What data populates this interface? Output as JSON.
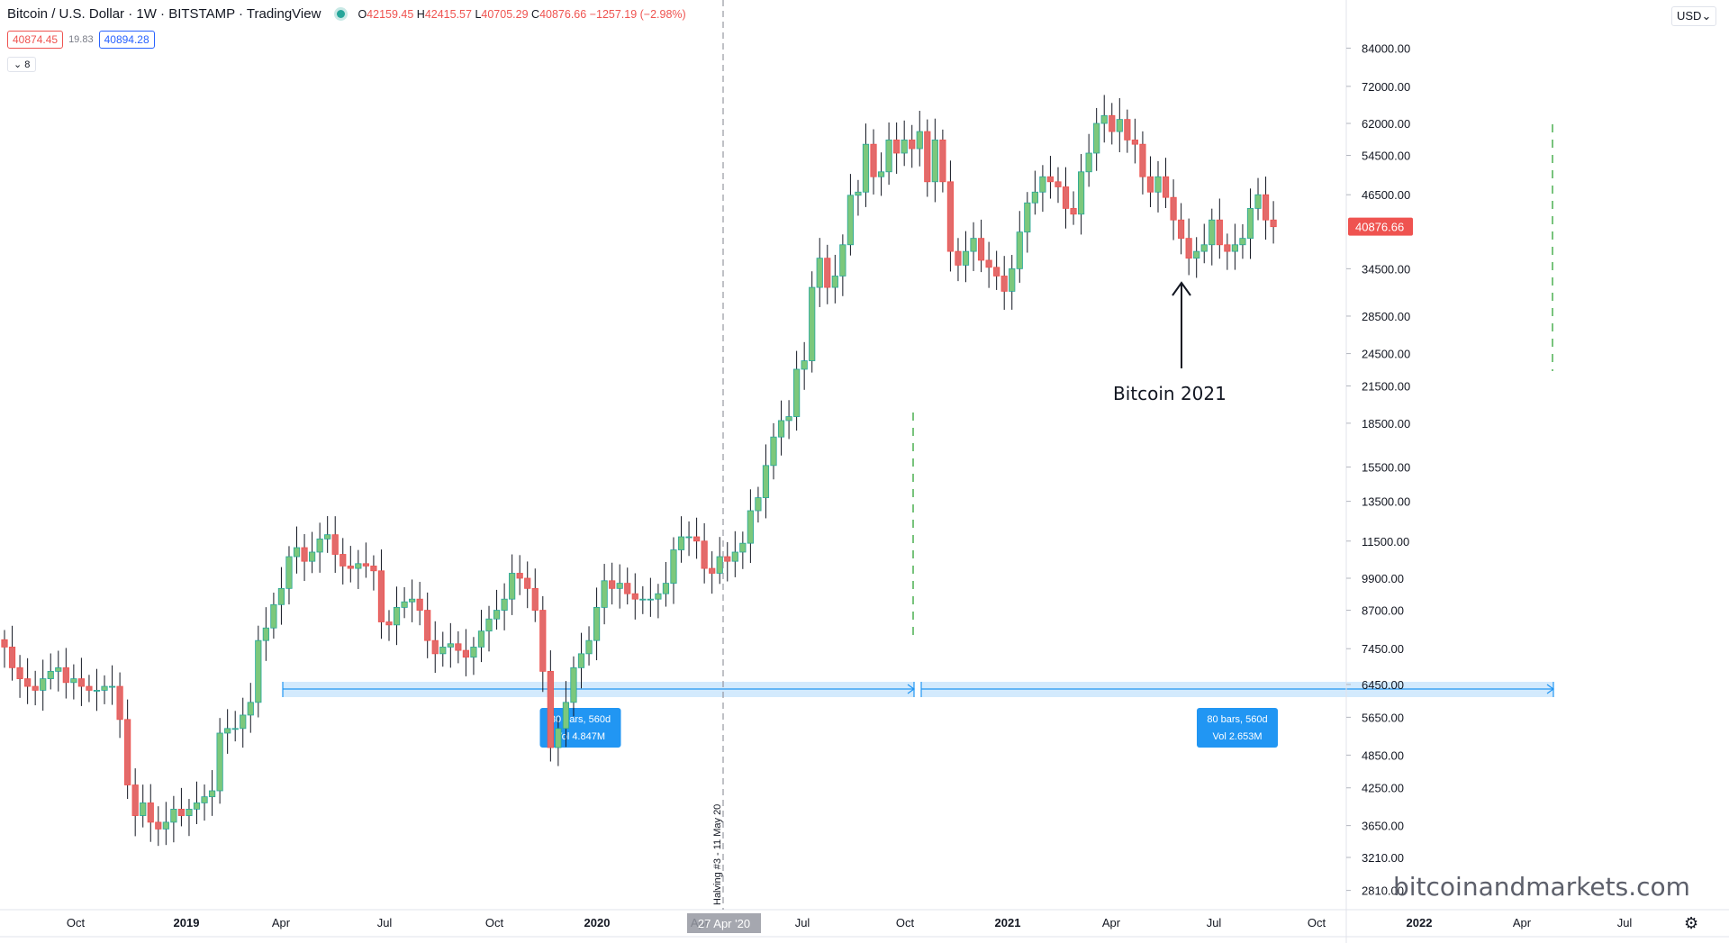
{
  "header": {
    "title": "Bitcoin / U.S. Dollar · 1W · BITSTAMP · TradingView",
    "ohlc": {
      "o_label": "O",
      "o": "42159.45",
      "h_label": "H",
      "h": "42415.57",
      "l_label": "L",
      "l": "40705.29",
      "c_label": "C",
      "c": "40876.66",
      "change": "−1257.19 (−2.98%)"
    },
    "bid": "40874.45",
    "spread": "19.83",
    "ask": "40894.28",
    "indicator_count": "8"
  },
  "currency_button": "USD",
  "watermark": "bitcoinandmarkets.com",
  "annotation": "Bitcoin 2021",
  "colors": {
    "up": "#26a69a",
    "up_fill": "#7cc87c",
    "down": "#ef5350",
    "down_fill": "#e36a6a",
    "range": "#2196f3",
    "line": "#9598a1"
  },
  "chart_data": {
    "type": "candlestick",
    "title": "Bitcoin / U.S. Dollar · 1W · BITSTAMP",
    "scale": "log",
    "ylim": [
      2600,
      102000
    ],
    "y_ticks": [
      2810,
      3210,
      3650,
      4250,
      4850,
      5650,
      6450,
      7450,
      8700,
      9900,
      11500,
      13500,
      15500,
      18500,
      21500,
      24500,
      28500,
      34500,
      46500,
      54500,
      62000,
      72000,
      84000
    ],
    "y_tick_labels": [
      "2810.00",
      "3210.00",
      "3650.00",
      "4250.00",
      "4850.00",
      "5650.00",
      "6450.00",
      "7450.00",
      "8700.00",
      "9900.00",
      "11500.00",
      "13500.00",
      "15500.00",
      "18500.00",
      "21500.00",
      "24500.00",
      "28500.00",
      "34500.00",
      "46500.00",
      "54500.00",
      "62000.00",
      "72000.00",
      "84000.00"
    ],
    "last_price_label": "40876.66",
    "x_tick_labels": [
      "Oct",
      "2019",
      "Apr",
      "Jul",
      "Oct",
      "2020",
      "Apr",
      "Jul",
      "Oct",
      "2021",
      "Apr",
      "Jul",
      "Oct",
      "2022",
      "Apr",
      "Jul"
    ],
    "crosshair_label": "27 Apr '20",
    "vertical_line_label": "Halving #3 - 11 May 20",
    "ranges": [
      {
        "bars": "80 bars, 560d",
        "vol": "Vol 4.847M"
      },
      {
        "bars": "80 bars, 560d",
        "vol": "Vol 2.653M"
      }
    ],
    "weekly_close": [
      7500,
      6900,
      6600,
      6400,
      6300,
      6600,
      6800,
      6900,
      6500,
      6600,
      6400,
      6300,
      6300,
      6400,
      6400,
      5600,
      4300,
      3800,
      4000,
      3700,
      3600,
      3700,
      3900,
      3800,
      3900,
      4000,
      4100,
      4200,
      5300,
      5400,
      5400,
      5700,
      6000,
      7700,
      8100,
      8900,
      9500,
      10800,
      11200,
      10600,
      11000,
      11600,
      11800,
      10900,
      10400,
      10300,
      10500,
      10400,
      10200,
      8300,
      8200,
      8800,
      9000,
      9100,
      8700,
      7700,
      7300,
      7500,
      7600,
      7400,
      7200,
      7500,
      8000,
      8400,
      8700,
      9100,
      10100,
      9900,
      9500,
      8700,
      6800,
      5000,
      5400,
      6000,
      6900,
      7300,
      7700,
      8800,
      9800,
      9500,
      9700,
      9300,
      9100,
      9100,
      9100,
      9300,
      9700,
      11100,
      11700,
      11700,
      11500,
      10300,
      10100,
      10800,
      10600,
      11000,
      11400,
      13000,
      13700,
      15600,
      17500,
      18700,
      19000,
      23000,
      23800,
      32000,
      36000,
      32000,
      33500,
      38000,
      46400,
      47000,
      57000,
      50000,
      51000,
      58000,
      55000,
      58000,
      56000,
      60000,
      49000,
      58000,
      49000,
      37000,
      35000,
      37000,
      39000,
      35700,
      34700,
      33500,
      31500,
      34500,
      40000,
      45000,
      47000,
      50000,
      49000,
      48000,
      44000,
      43000,
      51000,
      55000,
      62000,
      64000,
      60000,
      63000,
      58000,
      57000,
      50000,
      47000,
      50000,
      46000,
      42000,
      39000,
      36000,
      37000,
      38000,
      42000,
      38000,
      37000,
      38000,
      39000,
      44000,
      46500,
      42000,
      40877
    ]
  }
}
